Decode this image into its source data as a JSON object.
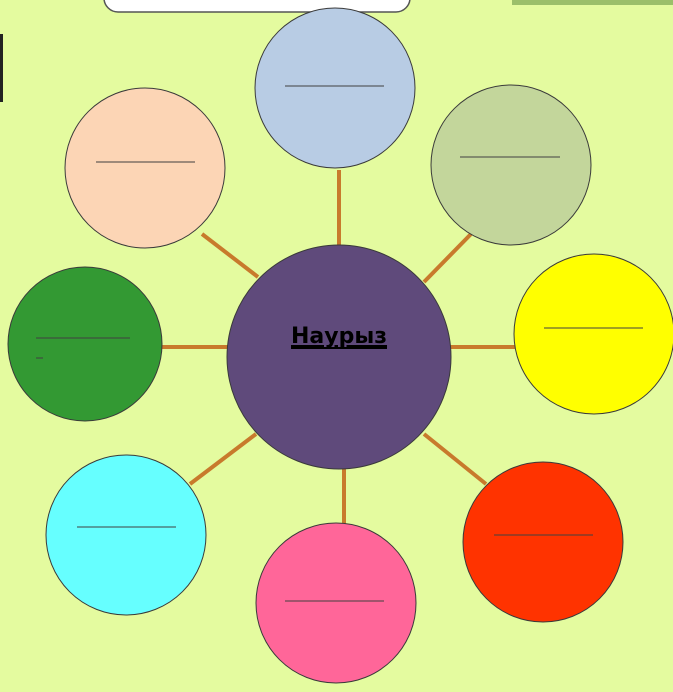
{
  "center": {
    "label": "Наурыз"
  }
}
